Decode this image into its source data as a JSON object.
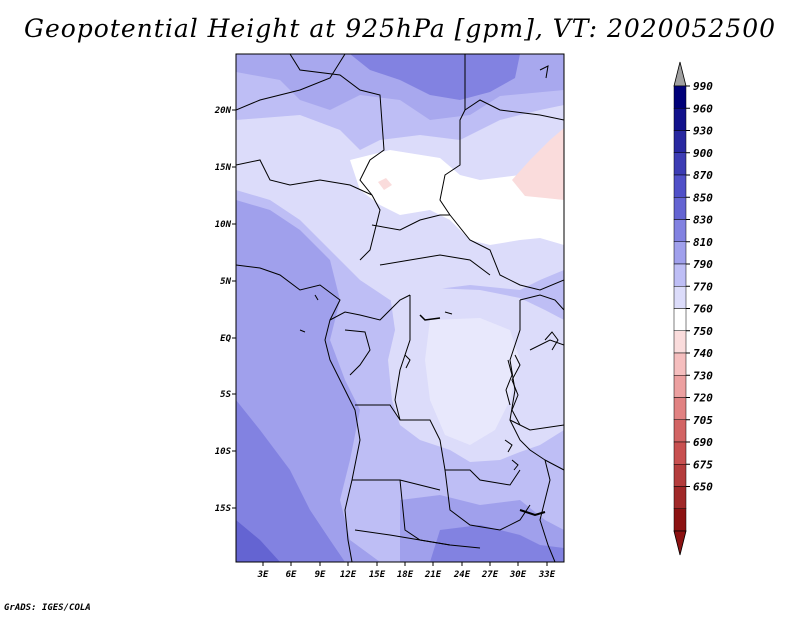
{
  "title": "Geopotential Height at 925hPa [gpm], VT: 2020052500",
  "credit": "GrADS: IGES/COLA",
  "map": {
    "lat_labels": [
      "20N",
      "15N",
      "10N",
      "5N",
      "EQ",
      "5S",
      "10S",
      "15S"
    ],
    "lon_labels": [
      "3E",
      "6E",
      "9E",
      "12E",
      "15E",
      "18E",
      "21E",
      "24E",
      "27E",
      "30E",
      "33E"
    ]
  },
  "colorbar": {
    "labels": [
      "990",
      "960",
      "930",
      "900",
      "870",
      "850",
      "830",
      "810",
      "790",
      "770",
      "760",
      "750",
      "740",
      "730",
      "720",
      "705",
      "690",
      "675",
      "650"
    ],
    "colors": [
      "#000078",
      "#12128c",
      "#2828a0",
      "#3c3cb4",
      "#5050c8",
      "#6464d2",
      "#8282e1",
      "#a0a0ec",
      "#bebef5",
      "#dcdcfa",
      "#ffffff",
      "#fadcdc",
      "#f5bebe",
      "#eca0a0",
      "#e18282",
      "#d26464",
      "#c85050",
      "#b43c3c",
      "#a02828",
      "#8c1212"
    ],
    "top_arrow_color": "#a0a0a0",
    "bottom_arrow_color": "#8c1212"
  }
}
